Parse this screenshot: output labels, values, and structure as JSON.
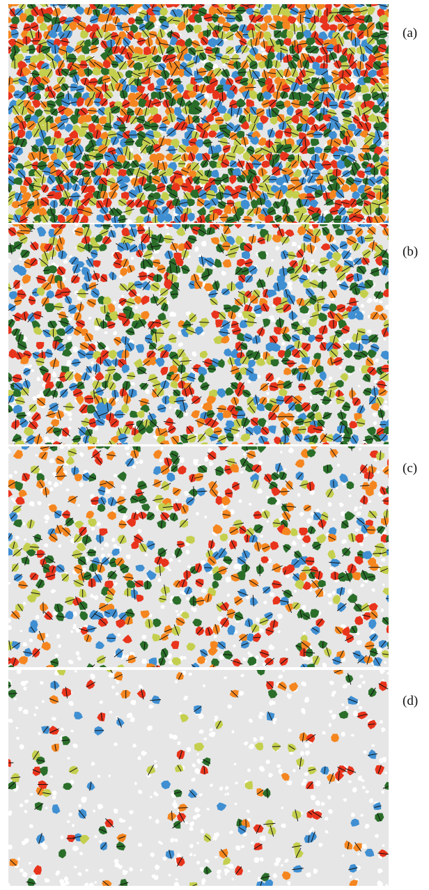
{
  "palette": {
    "background_grain": "#e6e6e6",
    "grain_gap": "#ffffff",
    "cluster_colors": [
      "#e8341c",
      "#f5861f",
      "#3f8fd2",
      "#2a6e2a",
      "#c4cf4e"
    ],
    "bond_line": "#111111"
  },
  "panels": [
    {
      "label": "(a)",
      "density": 0.92
    },
    {
      "label": "(b)",
      "density": 0.55
    },
    {
      "label": "(c)",
      "density": 0.32
    },
    {
      "label": "(d)",
      "density": 0.1
    }
  ]
}
